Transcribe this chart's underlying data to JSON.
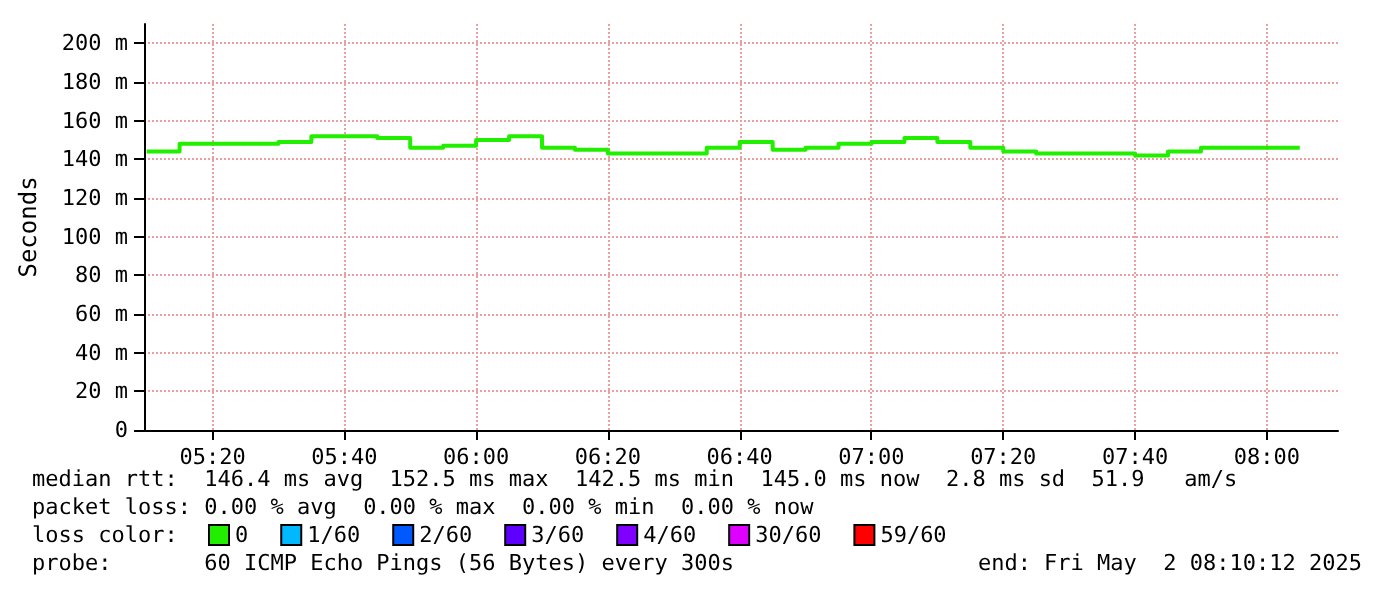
{
  "chart_data": {
    "type": "step",
    "ylabel": "Seconds",
    "legend_title": "loss color:",
    "legend": "bottom left",
    "grid": true,
    "line_style": "solid",
    "marker": "none",
    "x": [
      5.1667,
      5.25,
      5.3333,
      5.4167,
      5.5,
      5.5833,
      5.6667,
      5.75,
      5.8333,
      5.9167,
      6.0,
      6.0833,
      6.1667,
      6.25,
      6.3333,
      6.4167,
      6.5,
      6.5833,
      6.6667,
      6.75,
      6.8333,
      6.9167,
      7.0,
      7.0833,
      7.1667,
      7.25,
      7.3333,
      7.4167,
      7.5,
      7.5833,
      7.6667,
      7.75,
      7.8333,
      7.9167,
      8.0,
      8.0833
    ],
    "xlim": [
      5.16,
      8.18
    ],
    "xticks": [
      {
        "value": 5.3333,
        "label": "05:20"
      },
      {
        "value": 5.6667,
        "label": "05:40"
      },
      {
        "value": 6.0,
        "label": "06:00"
      },
      {
        "value": 6.3333,
        "label": "06:20"
      },
      {
        "value": 6.6667,
        "label": "06:40"
      },
      {
        "value": 7.0,
        "label": "07:00"
      },
      {
        "value": 7.3333,
        "label": "07:20"
      },
      {
        "value": 7.6667,
        "label": "07:40"
      },
      {
        "value": 8.0,
        "label": "08:00"
      }
    ],
    "ylim": [
      0,
      210
    ],
    "yticks": [
      {
        "value": 0,
        "label": "0"
      },
      {
        "value": 20,
        "label": "20 m"
      },
      {
        "value": 40,
        "label": "40 m"
      },
      {
        "value": 60,
        "label": "60 m"
      },
      {
        "value": 80,
        "label": "80 m"
      },
      {
        "value": 100,
        "label": "100 m"
      },
      {
        "value": 120,
        "label": "120 m"
      },
      {
        "value": 140,
        "label": "140 m"
      },
      {
        "value": 160,
        "label": "160 m"
      },
      {
        "value": 180,
        "label": "180 m"
      },
      {
        "value": 200,
        "label": "200 m"
      }
    ],
    "series": [
      {
        "name": "0",
        "color": "#22ee00",
        "values": [
          144,
          148,
          148,
          148,
          149,
          152,
          152,
          151,
          146,
          147,
          150,
          152,
          146,
          145,
          143,
          143,
          143,
          146,
          149,
          145,
          146,
          148,
          149,
          151,
          149,
          146,
          144,
          143,
          143,
          143,
          142,
          144,
          146,
          146,
          146,
          146
        ]
      },
      {
        "name": "1/60",
        "color": "#00b8ff",
        "values": [
          null,
          null,
          null,
          null,
          null,
          null,
          null,
          null,
          null,
          null,
          null,
          null,
          null,
          null,
          null,
          null,
          null,
          null,
          null,
          null,
          null,
          null,
          null,
          null,
          null,
          null,
          null,
          null,
          null,
          null,
          null,
          null,
          null,
          null,
          null,
          null
        ]
      },
      {
        "name": "2/60",
        "color": "#0059ff",
        "values": [
          null,
          null,
          null,
          null,
          null,
          null,
          null,
          null,
          null,
          null,
          null,
          null,
          null,
          null,
          null,
          null,
          null,
          null,
          null,
          null,
          null,
          null,
          null,
          null,
          null,
          null,
          null,
          null,
          null,
          null,
          null,
          null,
          null,
          null,
          null,
          null
        ]
      },
      {
        "name": "3/60",
        "color": "#5e00ff",
        "values": [
          null,
          null,
          null,
          null,
          null,
          null,
          null,
          null,
          null,
          null,
          null,
          null,
          null,
          null,
          null,
          null,
          null,
          null,
          null,
          null,
          null,
          null,
          null,
          null,
          null,
          null,
          null,
          null,
          null,
          null,
          null,
          null,
          null,
          null,
          null,
          null
        ]
      },
      {
        "name": "4/60",
        "color": "#7e00ff",
        "values": [
          null,
          null,
          null,
          null,
          null,
          null,
          null,
          null,
          null,
          null,
          null,
          null,
          null,
          null,
          null,
          null,
          null,
          null,
          null,
          null,
          null,
          null,
          null,
          null,
          null,
          null,
          null,
          null,
          null,
          null,
          null,
          null,
          null,
          null,
          null,
          null
        ]
      },
      {
        "name": "30/60",
        "color": "#dd00ff",
        "values": [
          null,
          null,
          null,
          null,
          null,
          null,
          null,
          null,
          null,
          null,
          null,
          null,
          null,
          null,
          null,
          null,
          null,
          null,
          null,
          null,
          null,
          null,
          null,
          null,
          null,
          null,
          null,
          null,
          null,
          null,
          null,
          null,
          null,
          null,
          null,
          null
        ]
      },
      {
        "name": "59/60",
        "color": "#ff0000",
        "values": [
          null,
          null,
          null,
          null,
          null,
          null,
          null,
          null,
          null,
          null,
          null,
          null,
          null,
          null,
          null,
          null,
          null,
          null,
          null,
          null,
          null,
          null,
          null,
          null,
          null,
          null,
          null,
          null,
          null,
          null,
          null,
          null,
          null,
          null,
          null,
          null
        ]
      }
    ],
    "annotations": [
      "median rtt:  146.4 ms avg  152.5 ms max  142.5 ms min  145.0 ms now  2.8 ms sd  51.9   am/s",
      "packet loss: 0.00 % avg  0.00 % max  0.00 % min  0.00 % now",
      "probe:       60 ICMP Echo Pings (56 Bytes) every 300s",
      "end: Fri May  2 08:10:12 2025"
    ]
  }
}
